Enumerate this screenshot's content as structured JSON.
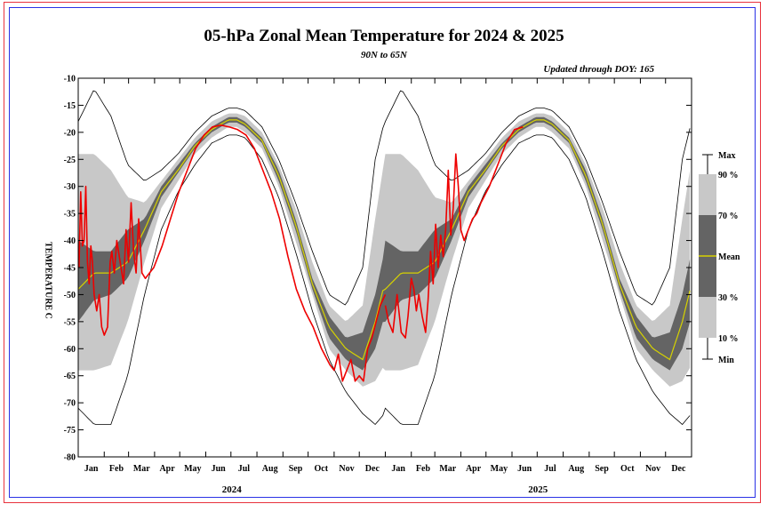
{
  "title": "05-hPa Zonal Mean Temperature for 2024 & 2025",
  "subtitle": "90N to 65N",
  "updated": "Updated through DOY: 165",
  "colors": {
    "band_10_90": "#c8c8c8",
    "band_30_70": "#646464",
    "mean": "#d6d200",
    "extreme": "#000000",
    "observed": "#ee0000",
    "outer_frame": "#e8323c",
    "inner_frame": "#2a32e6"
  },
  "chart_data": {
    "type": "line",
    "title": "05-hPa Zonal Mean Temperature for 2024 & 2025",
    "subtitle": "90N to 65N",
    "xlabel": "",
    "ylabel": "TEMPERATURE C",
    "ylim": [
      -80,
      -10
    ],
    "yticks": [
      -10,
      -15,
      -20,
      -25,
      -30,
      -35,
      -40,
      -45,
      -50,
      -55,
      -60,
      -65,
      -70,
      -75,
      -80
    ],
    "xlim": [
      0,
      731
    ],
    "month_labels": [
      "Jan",
      "Feb",
      "Mar",
      "Apr",
      "May",
      "Jun",
      "Jul",
      "Aug",
      "Sep",
      "Oct",
      "Nov",
      "Dec",
      "Jan",
      "Feb",
      "Mar",
      "Apr",
      "May",
      "Jun",
      "Jul",
      "Aug",
      "Sep",
      "Oct",
      "Nov",
      "Dec"
    ],
    "month_starts": [
      0,
      31,
      60,
      91,
      121,
      152,
      182,
      213,
      244,
      274,
      305,
      335,
      366,
      397,
      425,
      456,
      486,
      517,
      547,
      578,
      609,
      639,
      670,
      700
    ],
    "years": [
      "2024",
      "2025"
    ],
    "year_centers": [
      183,
      548
    ],
    "legend": {
      "placement": "right",
      "labels": [
        "Max",
        "90 %",
        "70 %",
        "Mean",
        "30 %",
        "10 %",
        "Min"
      ]
    },
    "climatology_by_doy": {
      "doy": [
        1,
        20,
        40,
        60,
        80,
        100,
        120,
        140,
        160,
        180,
        190,
        200,
        220,
        240,
        260,
        280,
        300,
        320,
        340,
        355,
        366
      ],
      "max": [
        -18,
        -12,
        -17,
        -26,
        -29,
        -27,
        -24,
        -20,
        -17,
        -15.5,
        -15.5,
        -16,
        -19,
        -25,
        -33,
        -42,
        -50,
        -52,
        -45,
        -25,
        -18
      ],
      "p90": [
        -24,
        -24,
        -27,
        -32,
        -33,
        -29,
        -25,
        -21,
        -18,
        -16.5,
        -16.5,
        -17,
        -20,
        -26,
        -34,
        -44,
        -52,
        -55,
        -52,
        -36,
        -25
      ],
      "p70": [
        -40,
        -42,
        -42,
        -38,
        -36,
        -30,
        -26,
        -22,
        -19,
        -17.2,
        -17.2,
        -18,
        -21,
        -27,
        -36,
        -47,
        -54,
        -58,
        -57,
        -50,
        -42
      ],
      "mean": [
        -49,
        -46,
        -46,
        -44,
        -38,
        -31,
        -27,
        -22.5,
        -19.5,
        -17.7,
        -17.7,
        -18.5,
        -21.5,
        -28,
        -37,
        -48,
        -56,
        -60,
        -62,
        -55,
        -48
      ],
      "p30": [
        -55,
        -51,
        -50,
        -47,
        -40,
        -32,
        -27.5,
        -23,
        -20,
        -18.2,
        -18.2,
        -19,
        -22,
        -29,
        -38,
        -49,
        -58,
        -62,
        -64,
        -60,
        -54
      ],
      "p10": [
        -64,
        -64,
        -63,
        -55,
        -44,
        -34,
        -29,
        -24,
        -21,
        -19,
        -19,
        -20,
        -23,
        -30,
        -40,
        -50,
        -60,
        -64,
        -67,
        -66,
        -63
      ],
      "min": [
        -71,
        -74,
        -74,
        -65,
        -50,
        -38,
        -31,
        -26,
        -22,
        -20.5,
        -20.5,
        -21,
        -25,
        -32,
        -42,
        -53,
        -62,
        -68,
        -72,
        -74,
        -72
      ]
    },
    "series": [
      {
        "name": "2024",
        "x": [
          1,
          3,
          5,
          7,
          9,
          11,
          13,
          15,
          17,
          19,
          22,
          25,
          28,
          31,
          35,
          38,
          40,
          43,
          46,
          50,
          54,
          57,
          60,
          63,
          66,
          69,
          72,
          76,
          80,
          85,
          90,
          100,
          110,
          120,
          130,
          140,
          150,
          160,
          170,
          180,
          190,
          200,
          210,
          220,
          230,
          240,
          250,
          260,
          270,
          280,
          290,
          300,
          305,
          310,
          315,
          320,
          325,
          330,
          335,
          340,
          345,
          350,
          355,
          360,
          366
        ],
        "y": [
          -45,
          -31,
          -41,
          -40,
          -30,
          -44,
          -48,
          -41,
          -44,
          -50,
          -53,
          -50,
          -56,
          -57.5,
          -56,
          -44,
          -42,
          -46,
          -40,
          -44,
          -48,
          -38,
          -44,
          -33,
          -42,
          -46,
          -36,
          -46,
          -47,
          -46,
          -45,
          -41,
          -36,
          -31,
          -27,
          -23,
          -20.5,
          -19,
          -18.7,
          -19,
          -19.5,
          -20.5,
          -23,
          -27,
          -31,
          -36,
          -43,
          -49,
          -53,
          -56,
          -60,
          -63,
          -64,
          -61,
          -66,
          -64,
          -62,
          -66,
          -65,
          -66,
          -60,
          -58,
          -55,
          -52,
          -50
        ]
      },
      {
        "name": "2025",
        "x": [
          366,
          370,
          375,
          380,
          385,
          390,
          393,
          397,
          400,
          403,
          406,
          410,
          414,
          417,
          420,
          423,
          426,
          429,
          432,
          435,
          438,
          441,
          444,
          447,
          450,
          453,
          456,
          460,
          465,
          470,
          475,
          480,
          490,
          500,
          510,
          520,
          530
        ],
        "y": [
          -52,
          -55,
          -57,
          -50,
          -57,
          -58,
          -54,
          -47,
          -49,
          -53,
          -50,
          -54,
          -57,
          -51,
          -42,
          -48,
          -37,
          -45,
          -39,
          -43,
          -38,
          -27,
          -39,
          -34,
          -24,
          -30,
          -38,
          -40,
          -38,
          -36,
          -35,
          -33,
          -30,
          -26,
          -22,
          -19.5,
          -19
        ]
      }
    ]
  }
}
